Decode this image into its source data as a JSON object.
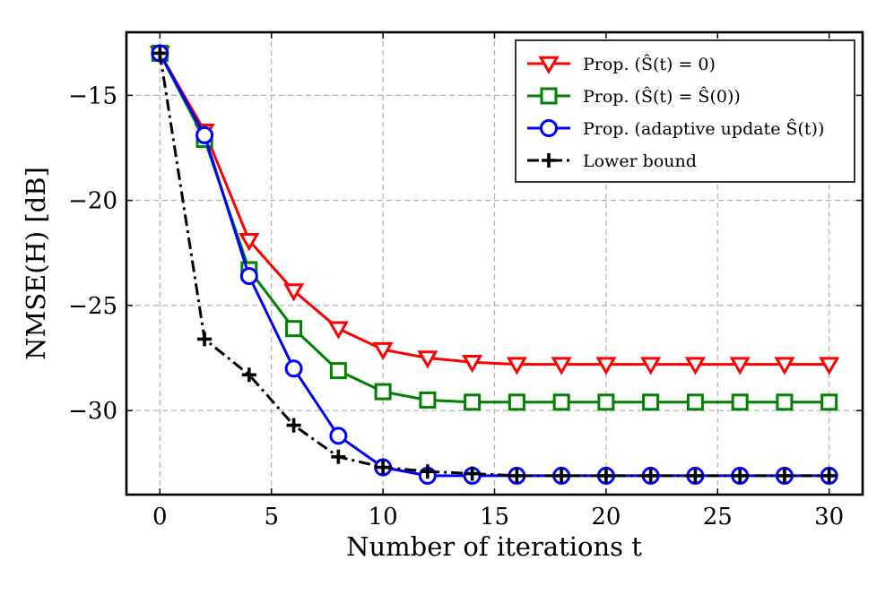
{
  "chart_data": {
    "type": "line",
    "title": "",
    "xlabel": "Number of iterations t",
    "ylabel": "NMSE(H) [dB]",
    "xlim": [
      -1.5,
      31.5
    ],
    "ylim": [
      -34,
      -12
    ],
    "xticks": [
      0,
      5,
      10,
      15,
      20,
      25,
      30
    ],
    "yticks": [
      -15,
      -20,
      -25,
      -30
    ],
    "xtick_labels": [
      "0",
      "5",
      "10",
      "15",
      "20",
      "25",
      "30"
    ],
    "ytick_labels": [
      "−15",
      "−20",
      "−25",
      "−30"
    ],
    "grid": true,
    "legend_position": "top-right",
    "series": [
      {
        "name": "Prop. (Ŝ(t) = 0)",
        "color": "#ff0000",
        "marker": "triangle-down",
        "linestyle": "solid",
        "x": [
          0,
          2,
          4,
          6,
          8,
          10,
          12,
          14,
          16,
          18,
          20,
          22,
          24,
          26,
          28,
          30
        ],
        "y": [
          -13.0,
          -16.7,
          -21.9,
          -24.3,
          -26.1,
          -27.1,
          -27.5,
          -27.7,
          -27.8,
          -27.8,
          -27.8,
          -27.8,
          -27.8,
          -27.8,
          -27.8,
          -27.8
        ]
      },
      {
        "name": "Prop. (Ŝ(t) = Ŝ(0))",
        "color": "#008000",
        "marker": "square",
        "linestyle": "solid",
        "x": [
          0,
          2,
          4,
          6,
          8,
          10,
          12,
          14,
          16,
          18,
          20,
          22,
          24,
          26,
          28,
          30
        ],
        "y": [
          -13.0,
          -17.1,
          -23.3,
          -26.1,
          -28.1,
          -29.1,
          -29.5,
          -29.6,
          -29.6,
          -29.6,
          -29.6,
          -29.6,
          -29.6,
          -29.6,
          -29.6,
          -29.6
        ]
      },
      {
        "name": "Prop. (adaptive update Ŝ(t))",
        "color": "#0000ff",
        "marker": "circle",
        "linestyle": "solid",
        "x": [
          0,
          2,
          4,
          6,
          8,
          10,
          12,
          14,
          16,
          18,
          20,
          22,
          24,
          26,
          28,
          30
        ],
        "y": [
          -13.0,
          -16.9,
          -23.6,
          -28.0,
          -31.2,
          -32.7,
          -33.1,
          -33.1,
          -33.1,
          -33.1,
          -33.1,
          -33.1,
          -33.1,
          -33.1,
          -33.1,
          -33.1
        ]
      },
      {
        "name": "Lower bound",
        "color": "#000000",
        "marker": "plus",
        "linestyle": "dashdot",
        "x": [
          0,
          2,
          4,
          6,
          8,
          10,
          12,
          14,
          16,
          18,
          20,
          22,
          24,
          26,
          28,
          30
        ],
        "y": [
          -13.0,
          -26.6,
          -28.3,
          -30.7,
          -32.2,
          -32.7,
          -32.9,
          -33.0,
          -33.1,
          -33.1,
          -33.1,
          -33.1,
          -33.1,
          -33.1,
          -33.1,
          -33.1
        ]
      }
    ]
  }
}
